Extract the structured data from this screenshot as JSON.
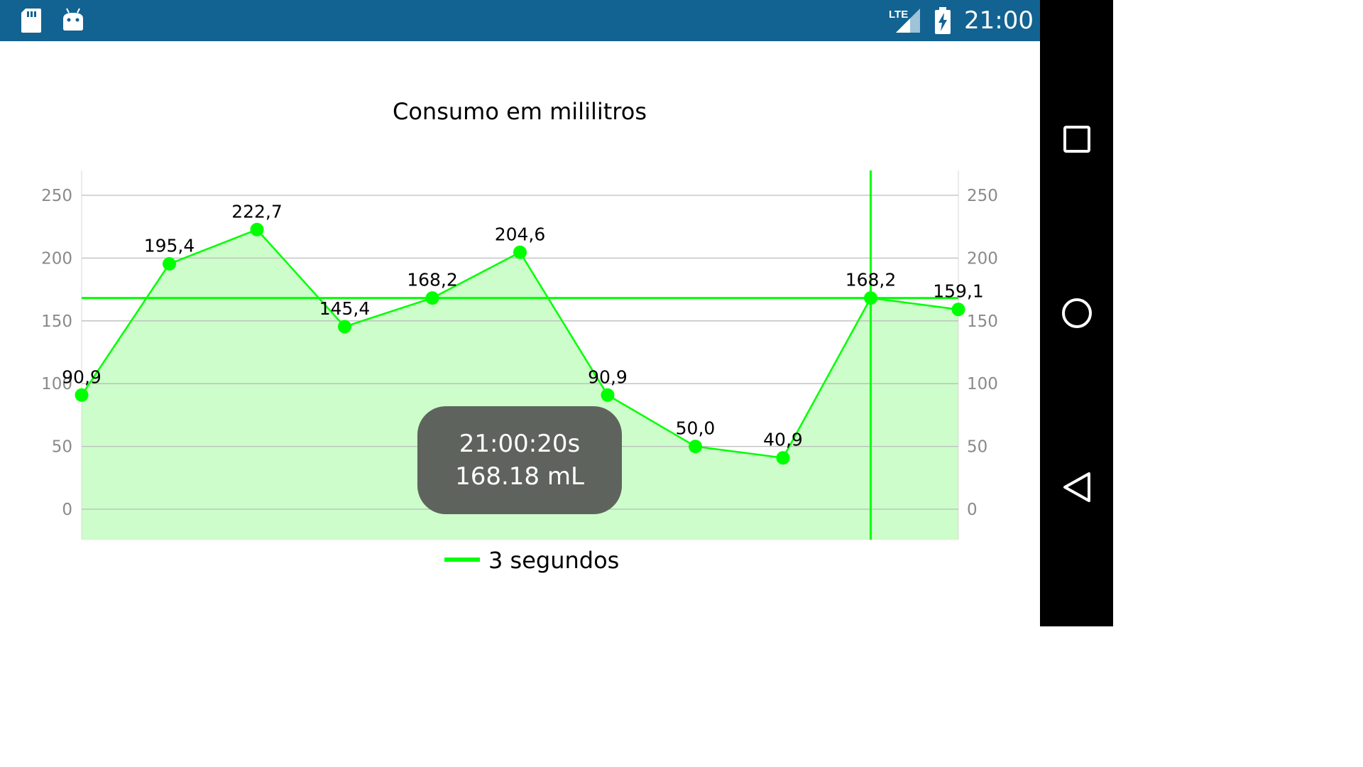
{
  "status_bar": {
    "time": "21:00",
    "network": "LTE",
    "icons": [
      "sd-card-icon",
      "android-debug-icon",
      "lte-signal-icon",
      "battery-charging-icon"
    ]
  },
  "nav_bar": {
    "buttons": [
      "recents-icon",
      "home-icon",
      "back-icon"
    ]
  },
  "chart_data": {
    "type": "line",
    "title": "Consumo em mililitros",
    "fill_area": true,
    "series": [
      {
        "name": "3 segundos",
        "values": [
          90.9,
          195.4,
          222.7,
          145.4,
          168.2,
          204.6,
          90.9,
          50.0,
          40.9,
          168.2,
          159.1
        ],
        "labels": [
          "90,9",
          "195,4",
          "222,7",
          "145,4",
          "168,2",
          "204,6",
          "90,9",
          "50,0",
          "40,9",
          "168,2",
          "159,1"
        ],
        "color": "#00ff00"
      }
    ],
    "y_ticks": [
      0,
      50,
      100,
      150,
      200,
      250
    ],
    "y_tick_labels": [
      "0",
      "50",
      "100",
      "150",
      "200",
      "250"
    ],
    "ylim": [
      -25,
      270
    ],
    "dual_y_axis": true,
    "grid": true,
    "legend_position": "bottom-center",
    "highlight": {
      "index": 9,
      "crosshair_color": "#00ff00",
      "tooltip_line1": "21:00:20s",
      "tooltip_line2": "168.18 mL"
    },
    "colors": {
      "line": "#00ff00",
      "fill": "#ccfdca",
      "grid": "#bdbdbd",
      "tick_text": "#8a8a8a",
      "tooltip_bg": "#5f635d"
    }
  }
}
